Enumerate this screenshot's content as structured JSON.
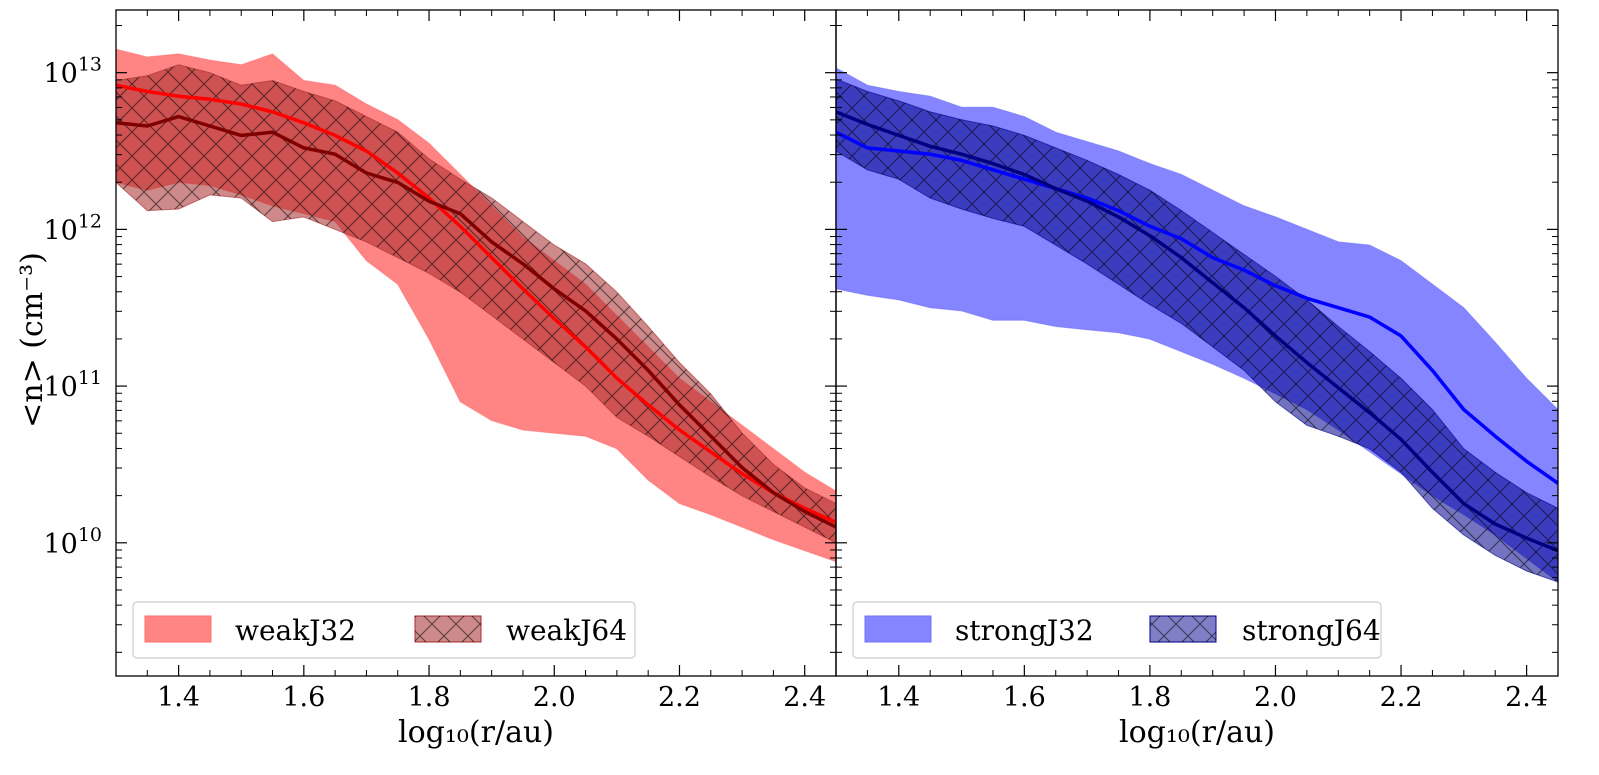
{
  "chart_data": {
    "type": "area",
    "ylabel": "<n> (cm⁻³)",
    "xlabel": "log₁₀(r/au)",
    "xlim": [
      1.3,
      2.45
    ],
    "ylim_log10": [
      9.15,
      13.4
    ],
    "x_ticks": [
      1.4,
      1.6,
      1.8,
      2.0,
      2.2,
      2.4
    ],
    "x_tick_labels": [
      "1.4",
      "1.6",
      "1.8",
      "2.0",
      "2.2",
      "2.4"
    ],
    "y_ticks_log10": [
      10,
      11,
      12,
      13
    ],
    "y_tick_labels": [
      {
        "base": "10",
        "exp": "10"
      },
      {
        "base": "10",
        "exp": "11"
      },
      {
        "base": "10",
        "exp": "12"
      },
      {
        "base": "10",
        "exp": "13"
      }
    ],
    "panels": [
      {
        "name": "weak",
        "legend_location": "lower-left",
        "series": [
          {
            "name": "weakJ32",
            "fill_color": "#ff6e6e",
            "line_color": "#ff0000",
            "hatch": false,
            "x": [
              1.3,
              1.35,
              1.4,
              1.45,
              1.5,
              1.55,
              1.6,
              1.65,
              1.7,
              1.75,
              1.8,
              1.85,
              1.9,
              1.95,
              2.0,
              2.05,
              2.1,
              2.15,
              2.2,
              2.25,
              2.3,
              2.35,
              2.4,
              2.45
            ],
            "log10_median": [
              12.92,
              12.88,
              12.85,
              12.83,
              12.8,
              12.75,
              12.68,
              12.6,
              12.5,
              12.36,
              12.2,
              12.02,
              11.82,
              11.62,
              11.43,
              11.25,
              11.05,
              10.88,
              10.72,
              10.58,
              10.44,
              10.32,
              10.22,
              10.13
            ],
            "log10_upper": [
              13.15,
              13.1,
              13.12,
              13.08,
              13.05,
              13.12,
              12.95,
              12.92,
              12.8,
              12.7,
              12.55,
              12.35,
              12.15,
              11.95,
              11.8,
              11.65,
              11.45,
              11.25,
              11.05,
              10.9,
              10.75,
              10.6,
              10.45,
              10.33
            ],
            "log10_lower": [
              12.3,
              12.25,
              12.3,
              12.28,
              12.22,
              12.15,
              12.1,
              12.05,
              11.8,
              11.65,
              11.3,
              10.9,
              10.78,
              10.72,
              10.7,
              10.68,
              10.6,
              10.4,
              10.25,
              10.18,
              10.1,
              10.02,
              9.95,
              9.88
            ]
          },
          {
            "name": "weakJ64",
            "fill_color": "#a52a2a",
            "line_color": "#800000",
            "hatch": true,
            "x": [
              1.3,
              1.35,
              1.4,
              1.45,
              1.5,
              1.55,
              1.6,
              1.65,
              1.7,
              1.75,
              1.8,
              1.85,
              1.9,
              1.95,
              2.0,
              2.05,
              2.1,
              2.15,
              2.2,
              2.25,
              2.3,
              2.35,
              2.4,
              2.45
            ],
            "log10_median": [
              12.68,
              12.66,
              12.72,
              12.66,
              12.6,
              12.62,
              12.52,
              12.48,
              12.36,
              12.3,
              12.18,
              12.1,
              11.92,
              11.78,
              11.62,
              11.48,
              11.3,
              11.1,
              10.88,
              10.68,
              10.48,
              10.32,
              10.2,
              10.1
            ],
            "log10_upper": [
              12.95,
              12.98,
              13.05,
              13.0,
              12.92,
              12.95,
              12.88,
              12.82,
              12.72,
              12.62,
              12.45,
              12.32,
              12.2,
              12.05,
              11.9,
              11.78,
              11.6,
              11.38,
              11.15,
              10.95,
              10.7,
              10.5,
              10.35,
              10.25
            ],
            "log10_lower": [
              12.3,
              12.12,
              12.13,
              12.22,
              12.2,
              12.05,
              12.08,
              12.0,
              11.92,
              11.82,
              11.72,
              11.6,
              11.45,
              11.3,
              11.15,
              11.0,
              10.8,
              10.68,
              10.55,
              10.42,
              10.3,
              10.2,
              10.1,
              10.0
            ]
          }
        ]
      },
      {
        "name": "strong",
        "legend_location": "lower-left",
        "series": [
          {
            "name": "strongJ32",
            "fill_color": "#7070ff",
            "line_color": "#0000ff",
            "hatch": false,
            "x": [
              1.3,
              1.35,
              1.4,
              1.45,
              1.5,
              1.55,
              1.6,
              1.65,
              1.7,
              1.75,
              1.8,
              1.85,
              1.9,
              1.95,
              2.0,
              2.05,
              2.1,
              2.15,
              2.2,
              2.25,
              2.3,
              2.35,
              2.4,
              2.45
            ],
            "log10_median": [
              12.62,
              12.52,
              12.5,
              12.48,
              12.44,
              12.38,
              12.32,
              12.26,
              12.2,
              12.12,
              12.02,
              11.94,
              11.82,
              11.74,
              11.64,
              11.56,
              11.5,
              11.44,
              11.32,
              11.1,
              10.85,
              10.68,
              10.52,
              10.38
            ],
            "log10_upper": [
              13.03,
              12.92,
              12.88,
              12.85,
              12.78,
              12.78,
              12.72,
              12.62,
              12.56,
              12.5,
              12.42,
              12.35,
              12.25,
              12.15,
              12.08,
              12.0,
              11.92,
              11.9,
              11.8,
              11.65,
              11.5,
              11.28,
              11.05,
              10.85
            ],
            "log10_lower": [
              11.62,
              11.58,
              11.55,
              11.5,
              11.48,
              11.42,
              11.42,
              11.38,
              11.36,
              11.34,
              11.3,
              11.22,
              11.14,
              11.05,
              10.95,
              10.85,
              10.72,
              10.58,
              10.44,
              10.3,
              10.18,
              10.05,
              9.9,
              9.75
            ]
          },
          {
            "name": "strongJ64",
            "fill_color": "#00008b",
            "line_color": "#000080",
            "hatch": true,
            "x": [
              1.3,
              1.35,
              1.4,
              1.45,
              1.5,
              1.55,
              1.6,
              1.65,
              1.7,
              1.75,
              1.8,
              1.85,
              1.9,
              1.95,
              2.0,
              2.05,
              2.1,
              2.15,
              2.2,
              2.25,
              2.3,
              2.35,
              2.4,
              2.45
            ],
            "log10_median": [
              12.75,
              12.67,
              12.6,
              12.53,
              12.48,
              12.42,
              12.35,
              12.26,
              12.18,
              12.08,
              11.96,
              11.82,
              11.66,
              11.5,
              11.32,
              11.15,
              10.99,
              10.83,
              10.66,
              10.45,
              10.25,
              10.12,
              10.03,
              9.95
            ],
            "log10_upper": [
              12.96,
              12.88,
              12.82,
              12.75,
              12.7,
              12.66,
              12.6,
              12.52,
              12.44,
              12.35,
              12.25,
              12.12,
              11.98,
              11.84,
              11.7,
              11.55,
              11.38,
              11.22,
              11.05,
              10.85,
              10.6,
              10.45,
              10.32,
              10.22
            ],
            "log10_lower": [
              12.5,
              12.38,
              12.32,
              12.2,
              12.13,
              12.07,
              12.02,
              11.9,
              11.78,
              11.65,
              11.52,
              11.4,
              11.25,
              11.1,
              10.9,
              10.75,
              10.68,
              10.6,
              10.45,
              10.22,
              10.05,
              9.92,
              9.82,
              9.75
            ]
          }
        ]
      }
    ]
  }
}
